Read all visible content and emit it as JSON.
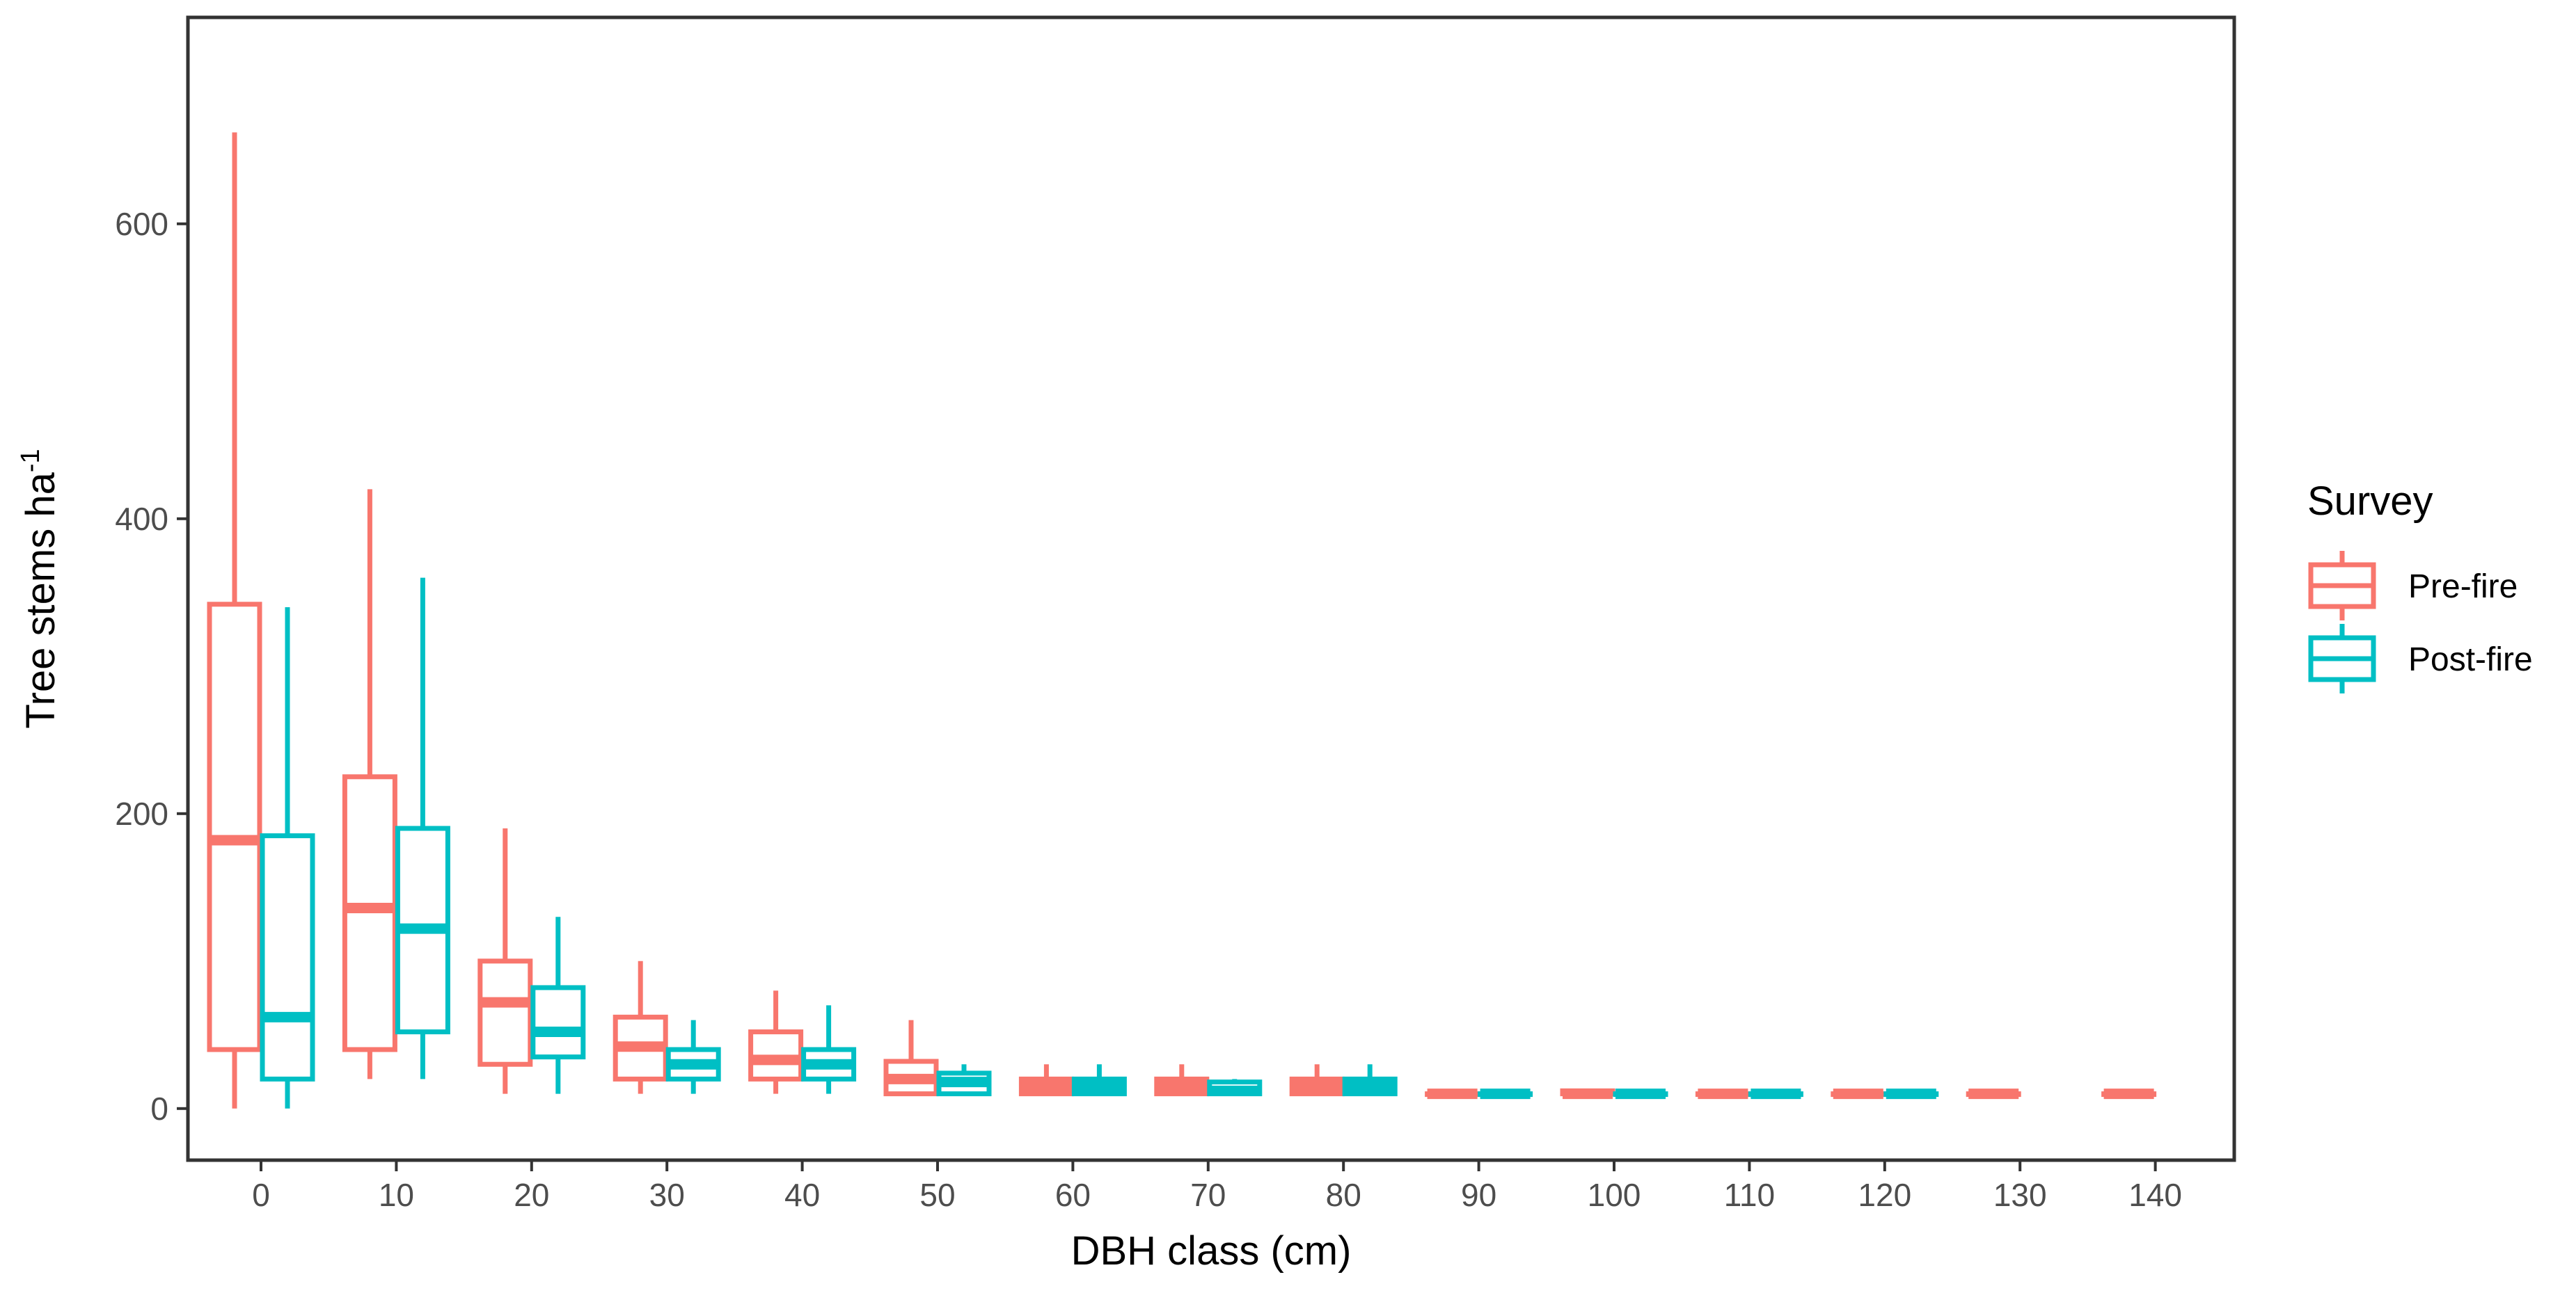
{
  "chart_data": {
    "type": "boxplot",
    "xlabel": "DBH class (cm)",
    "ylabel": "Tree stems ha",
    "ylabel_superscript": "-1",
    "ylim": [
      -35,
      740
    ],
    "yticks": [
      0,
      200,
      400,
      600
    ],
    "categories": [
      "0",
      "10",
      "20",
      "30",
      "40",
      "50",
      "60",
      "70",
      "80",
      "90",
      "100",
      "110",
      "120",
      "130",
      "140"
    ],
    "grid": false,
    "legend": {
      "title": "Survey",
      "position": "right"
    },
    "series": [
      {
        "name": "Pre-fire",
        "color": "#F8766D",
        "boxes": [
          {
            "category": "0",
            "min": 0,
            "q1": 40,
            "median": 182,
            "q3": 342,
            "max": 662
          },
          {
            "category": "10",
            "min": 20,
            "q1": 40,
            "median": 136,
            "q3": 225,
            "max": 420
          },
          {
            "category": "20",
            "min": 10,
            "q1": 30,
            "median": 72,
            "q3": 100,
            "max": 190
          },
          {
            "category": "30",
            "min": 10,
            "q1": 20,
            "median": 42,
            "q3": 62,
            "max": 100
          },
          {
            "category": "40",
            "min": 10,
            "q1": 20,
            "median": 33,
            "q3": 52,
            "max": 80
          },
          {
            "category": "50",
            "min": 10,
            "q1": 10,
            "median": 20,
            "q3": 32,
            "max": 60
          },
          {
            "category": "60",
            "min": 10,
            "q1": 10,
            "median": 15,
            "q3": 20,
            "max": 30
          },
          {
            "category": "70",
            "min": 10,
            "q1": 10,
            "median": 15,
            "q3": 20,
            "max": 30
          },
          {
            "category": "80",
            "min": 10,
            "q1": 10,
            "median": 15,
            "q3": 20,
            "max": 30
          },
          {
            "category": "90",
            "min": 10,
            "q1": 10,
            "median": 10,
            "q3": 10,
            "max": 10
          },
          {
            "category": "100",
            "min": 10,
            "q1": 10,
            "median": 10,
            "q3": 12,
            "max": 12
          },
          {
            "category": "110",
            "min": 10,
            "q1": 10,
            "median": 10,
            "q3": 10,
            "max": 10
          },
          {
            "category": "120",
            "min": 10,
            "q1": 10,
            "median": 10,
            "q3": 10,
            "max": 10
          },
          {
            "category": "130",
            "min": 10,
            "q1": 10,
            "median": 10,
            "q3": 10,
            "max": 10
          },
          {
            "category": "140",
            "min": 10,
            "q1": 10,
            "median": 10,
            "q3": 10,
            "max": 10
          }
        ]
      },
      {
        "name": "Post-fire",
        "color": "#00BFC4",
        "boxes": [
          {
            "category": "0",
            "min": 0,
            "q1": 20,
            "median": 62,
            "q3": 185,
            "max": 340
          },
          {
            "category": "10",
            "min": 20,
            "q1": 52,
            "median": 122,
            "q3": 190,
            "max": 360
          },
          {
            "category": "20",
            "min": 10,
            "q1": 35,
            "median": 52,
            "q3": 82,
            "max": 130
          },
          {
            "category": "30",
            "min": 10,
            "q1": 20,
            "median": 30,
            "q3": 40,
            "max": 60
          },
          {
            "category": "40",
            "min": 10,
            "q1": 20,
            "median": 30,
            "q3": 40,
            "max": 70
          },
          {
            "category": "50",
            "min": 10,
            "q1": 10,
            "median": 18,
            "q3": 24,
            "max": 30
          },
          {
            "category": "60",
            "min": 10,
            "q1": 10,
            "median": 15,
            "q3": 20,
            "max": 30
          },
          {
            "category": "70",
            "min": 10,
            "q1": 10,
            "median": 12,
            "q3": 18,
            "max": 20
          },
          {
            "category": "80",
            "min": 10,
            "q1": 10,
            "median": 15,
            "q3": 20,
            "max": 30
          },
          {
            "category": "90",
            "min": 10,
            "q1": 10,
            "median": 10,
            "q3": 10,
            "max": 10
          },
          {
            "category": "100",
            "min": 10,
            "q1": 10,
            "median": 10,
            "q3": 10,
            "max": 10
          },
          {
            "category": "110",
            "min": 10,
            "q1": 10,
            "median": 10,
            "q3": 10,
            "max": 10
          },
          {
            "category": "120",
            "min": 10,
            "q1": 10,
            "median": 10,
            "q3": 10,
            "max": 10
          }
        ]
      }
    ]
  }
}
